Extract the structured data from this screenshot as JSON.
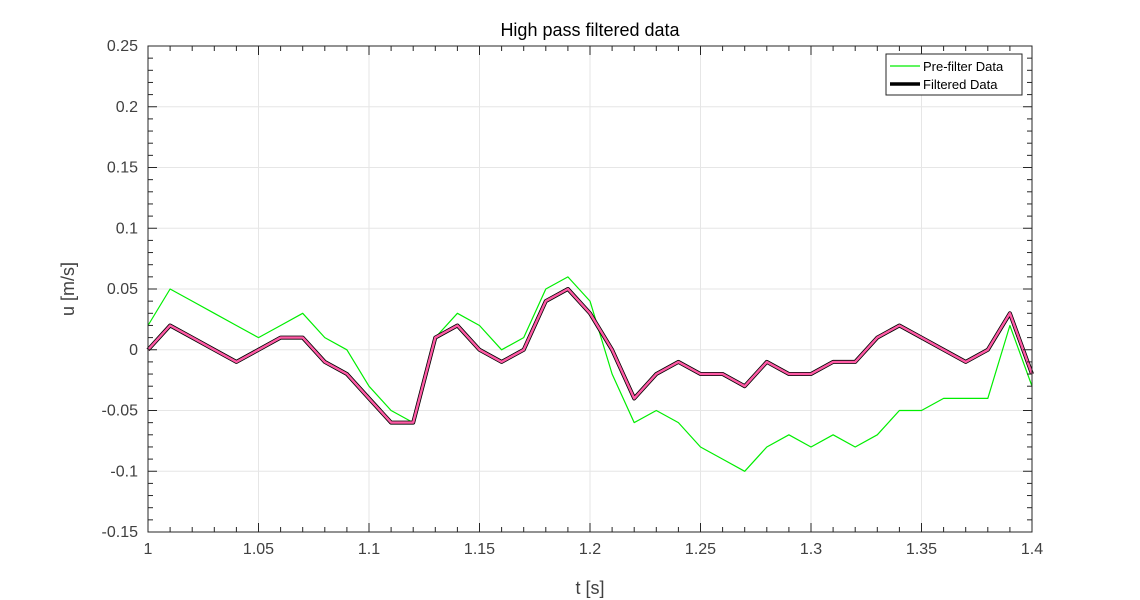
{
  "chart_data": {
    "type": "line",
    "title": "High pass filtered data",
    "xlabel": "t [s]",
    "ylabel": "u [m/s]",
    "xlim": [
      1.0,
      1.4
    ],
    "ylim": [
      -0.15,
      0.25
    ],
    "xticks": [
      1.0,
      1.05,
      1.1,
      1.15,
      1.2,
      1.25,
      1.3,
      1.35,
      1.4
    ],
    "xtick_labels": [
      "1",
      "1.05",
      "1.1",
      "1.15",
      "1.2",
      "1.25",
      "1.3",
      "1.35",
      "1.4"
    ],
    "yticks": [
      -0.15,
      -0.1,
      -0.05,
      0,
      0.05,
      0.1,
      0.15,
      0.2,
      0.25
    ],
    "ytick_labels": [
      "-0.15",
      "-0.1",
      "-0.05",
      "0",
      "0.05",
      "0.1",
      "0.15",
      "0.2",
      "0.25"
    ],
    "grid": true,
    "legend_position": "top-right",
    "colors": {
      "prefilter": "#00ee00",
      "filtered_edge": "#000000",
      "filtered_fill": "#ff5aa5"
    },
    "series": [
      {
        "name": "Pre-filter Data",
        "x": [
          1.0,
          1.01,
          1.02,
          1.03,
          1.04,
          1.05,
          1.06,
          1.07,
          1.08,
          1.09,
          1.1,
          1.11,
          1.12,
          1.13,
          1.14,
          1.15,
          1.16,
          1.17,
          1.18,
          1.19,
          1.2,
          1.21,
          1.22,
          1.23,
          1.24,
          1.25,
          1.26,
          1.27,
          1.28,
          1.29,
          1.3,
          1.31,
          1.32,
          1.33,
          1.34,
          1.35,
          1.36,
          1.37,
          1.38,
          1.39,
          1.4
        ],
        "values": [
          0.02,
          0.05,
          0.04,
          0.03,
          0.02,
          0.01,
          0.02,
          0.03,
          0.01,
          0.0,
          -0.03,
          -0.05,
          -0.06,
          0.01,
          0.03,
          0.02,
          0.0,
          0.01,
          0.05,
          0.06,
          0.04,
          -0.02,
          -0.06,
          -0.05,
          -0.06,
          -0.08,
          -0.09,
          -0.1,
          -0.08,
          -0.07,
          -0.08,
          -0.07,
          -0.08,
          -0.07,
          -0.05,
          -0.05,
          -0.04,
          -0.04,
          -0.04,
          0.02,
          -0.03
        ]
      },
      {
        "name": "Filtered Data",
        "x": [
          1.0,
          1.01,
          1.02,
          1.03,
          1.04,
          1.05,
          1.06,
          1.07,
          1.08,
          1.09,
          1.1,
          1.11,
          1.12,
          1.13,
          1.14,
          1.15,
          1.16,
          1.17,
          1.18,
          1.19,
          1.2,
          1.21,
          1.22,
          1.23,
          1.24,
          1.25,
          1.26,
          1.27,
          1.28,
          1.29,
          1.3,
          1.31,
          1.32,
          1.33,
          1.34,
          1.35,
          1.36,
          1.37,
          1.38,
          1.39,
          1.4
        ],
        "values": [
          0.0,
          0.02,
          0.01,
          0.0,
          -0.01,
          0.0,
          0.01,
          0.01,
          -0.01,
          -0.02,
          -0.04,
          -0.06,
          -0.06,
          0.01,
          0.02,
          0.0,
          -0.01,
          0.0,
          0.04,
          0.05,
          0.03,
          0.0,
          -0.04,
          -0.02,
          -0.01,
          -0.02,
          -0.02,
          -0.03,
          -0.01,
          -0.02,
          -0.02,
          -0.01,
          -0.01,
          0.01,
          0.02,
          0.01,
          0.0,
          -0.01,
          0.0,
          0.03,
          -0.02
        ]
      }
    ]
  }
}
